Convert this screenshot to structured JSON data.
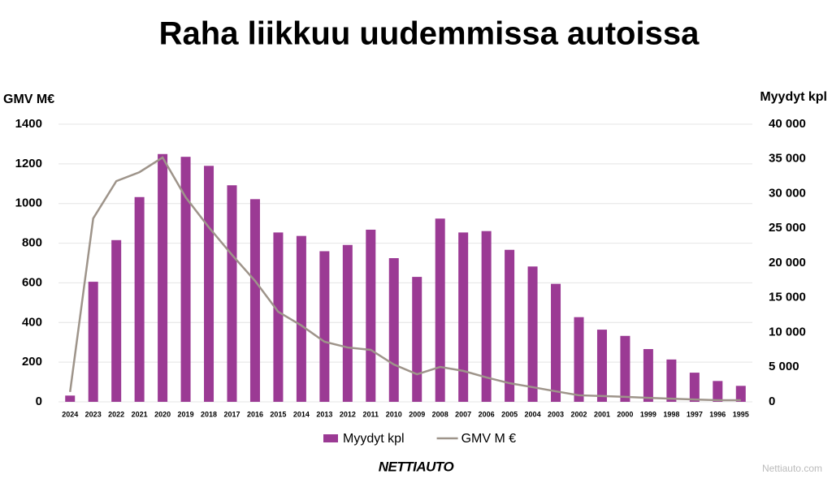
{
  "chart_data": {
    "type": "combo",
    "title": "Raha liikkuu uudemmissa autoissa",
    "y_label": "GMV M€",
    "y2_label": "Myydyt kpl",
    "categories": [
      "2024",
      "2023",
      "2022",
      "2021",
      "2020",
      "2019",
      "2018",
      "2017",
      "2016",
      "2015",
      "2014",
      "2013",
      "2012",
      "2011",
      "2010",
      "2009",
      "2008",
      "2007",
      "2006",
      "2005",
      "2004",
      "2003",
      "2002",
      "2001",
      "2000",
      "1999",
      "1998",
      "1997",
      "1996",
      "1995"
    ],
    "series": [
      {
        "name": "Myydyt kpl",
        "type": "bar",
        "axis": "y2",
        "color": "#9b3a94",
        "values": [
          900,
          17300,
          23300,
          29500,
          35700,
          35300,
          34000,
          31200,
          29200,
          24400,
          23900,
          21700,
          22600,
          24800,
          20700,
          18000,
          26400,
          24400,
          24600,
          21900,
          19500,
          17000,
          12200,
          10400,
          9500,
          7600,
          6100,
          4200,
          3000,
          2300
        ]
      },
      {
        "name": "GMV M €",
        "type": "line",
        "axis": "y",
        "color": "#9e948a",
        "values": [
          50,
          925,
          1113,
          1158,
          1232,
          1031,
          880,
          741,
          610,
          454,
          385,
          303,
          274,
          262,
          188,
          139,
          176,
          156,
          123,
          94,
          74,
          53,
          33,
          29,
          25,
          20,
          16,
          12,
          8,
          8
        ]
      }
    ],
    "ylim": [
      0,
      1400
    ],
    "yticks": [
      0,
      200,
      400,
      600,
      800,
      1000,
      1200,
      1400
    ],
    "y2lim": [
      0,
      40000
    ],
    "y2ticks": [
      0,
      {
        "value": 5000,
        "label": "5 000"
      },
      {
        "value": 10000,
        "label": "10 000"
      },
      {
        "value": 15000,
        "label": "15 000"
      },
      {
        "value": 20000,
        "label": "20 000"
      },
      {
        "value": 25000,
        "label": "25 000"
      },
      {
        "value": 30000,
        "label": "30 000"
      },
      {
        "value": 35000,
        "label": "35 000"
      },
      {
        "value": 40000,
        "label": "40 000"
      }
    ],
    "grid": true,
    "legend": "bottom",
    "logo": "NETTIAUTO",
    "watermark": "Nettiauto.com"
  }
}
